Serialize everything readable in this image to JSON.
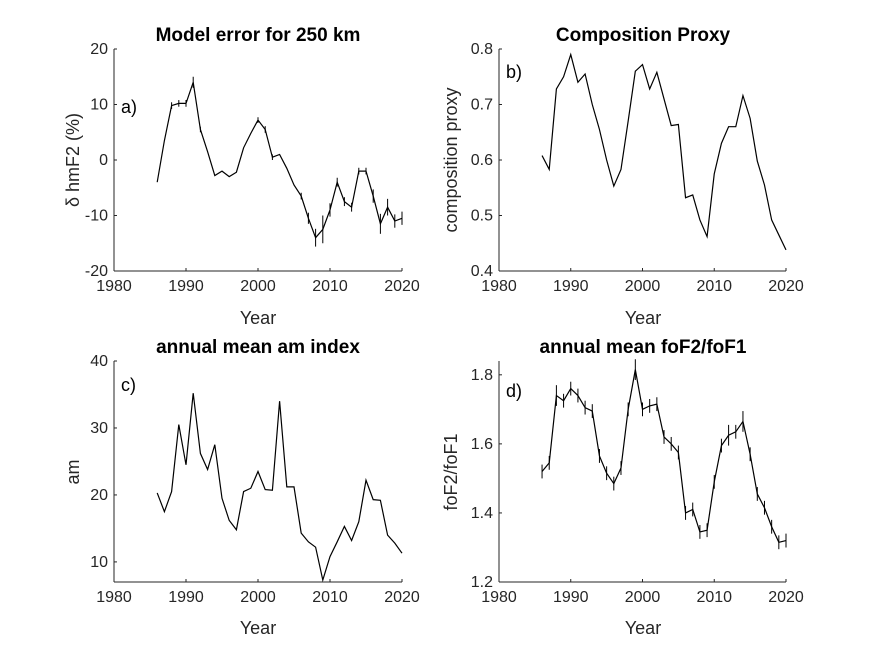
{
  "chart_data": [
    {
      "id": "a",
      "type": "line",
      "title": "Model error for 250 km",
      "panel_label": "a)",
      "xlabel": "Year",
      "ylabel": "δ hmF2 (%)",
      "xlim": [
        1980,
        2020
      ],
      "ylim": [
        -20,
        20
      ],
      "xticks": [
        1980,
        1990,
        2000,
        2010,
        2020
      ],
      "yticks": [
        -20,
        -10,
        0,
        10,
        20
      ],
      "x": [
        1986,
        1987,
        1988,
        1989,
        1990,
        1991,
        1992,
        1993,
        1994,
        1995,
        1996,
        1997,
        1998,
        1999,
        2000,
        2001,
        2002,
        2003,
        2004,
        2005,
        2006,
        2007,
        2008,
        2009,
        2010,
        2011,
        2012,
        2013,
        2014,
        2015,
        2016,
        2017,
        2018,
        2019,
        2020
      ],
      "y": [
        -4,
        3.5,
        9.8,
        10.2,
        10.2,
        14,
        5.5,
        1.5,
        -2.8,
        -2,
        -3,
        -2.2,
        2.2,
        4.8,
        7.2,
        5.5,
        0.5,
        1,
        -1.5,
        -4.5,
        -6.5,
        -10.5,
        -14,
        -12.5,
        -9,
        -4,
        -7.5,
        -8.5,
        -2,
        -2,
        -6.5,
        -11.5,
        -8.5,
        -11,
        -10.5
      ],
      "err": [
        0,
        0,
        0.6,
        0.6,
        0.6,
        1,
        0.5,
        0,
        0,
        0,
        0,
        0,
        0,
        0,
        0.5,
        0.6,
        0.5,
        0,
        0,
        0,
        0.6,
        1,
        1.6,
        2.5,
        1.2,
        0.8,
        0.8,
        0.8,
        0.6,
        0.6,
        1.2,
        1.8,
        1.5,
        1.2,
        1.2
      ]
    },
    {
      "id": "b",
      "type": "line",
      "title": "Composition Proxy",
      "panel_label": "b)",
      "xlabel": "Year",
      "ylabel": "composition proxy",
      "xlim": [
        1980,
        2020
      ],
      "ylim": [
        0.4,
        0.8
      ],
      "xticks": [
        1980,
        1990,
        2000,
        2010,
        2020
      ],
      "yticks": [
        0.4,
        0.5,
        0.6,
        0.7,
        0.8
      ],
      "x": [
        1986,
        1987,
        1988,
        1989,
        1990,
        1991,
        1992,
        1993,
        1994,
        1995,
        1996,
        1997,
        1998,
        1999,
        2000,
        2001,
        2002,
        2003,
        2004,
        2005,
        2006,
        2007,
        2008,
        2009,
        2010,
        2011,
        2012,
        2013,
        2014,
        2015,
        2016,
        2017,
        2018,
        2019,
        2020
      ],
      "y": [
        0.608,
        0.583,
        0.728,
        0.75,
        0.79,
        0.74,
        0.755,
        0.7,
        0.655,
        0.6,
        0.553,
        0.583,
        0.67,
        0.76,
        0.772,
        0.728,
        0.758,
        0.71,
        0.662,
        0.664,
        0.532,
        0.537,
        0.492,
        0.462,
        0.575,
        0.63,
        0.66,
        0.66,
        0.716,
        0.675,
        0.598,
        0.555,
        0.492,
        0.465,
        0.438
      ],
      "err": []
    },
    {
      "id": "c",
      "type": "line",
      "title": "annual mean am index",
      "panel_label": "c)",
      "xlabel": "Year",
      "ylabel": "am",
      "xlim": [
        1980,
        2020
      ],
      "ylim": [
        7,
        40
      ],
      "xticks": [
        1980,
        1990,
        2000,
        2010,
        2020
      ],
      "yticks": [
        10,
        20,
        30,
        40
      ],
      "x": [
        1986,
        1987,
        1988,
        1989,
        1990,
        1991,
        1992,
        1993,
        1994,
        1995,
        1996,
        1997,
        1998,
        1999,
        2000,
        2001,
        2002,
        2003,
        2004,
        2005,
        2006,
        2007,
        2008,
        2009,
        2010,
        2011,
        2012,
        2013,
        2014,
        2015,
        2016,
        2017,
        2018,
        2019,
        2020
      ],
      "y": [
        20.3,
        17.5,
        20.5,
        30.5,
        24.5,
        35.2,
        26.2,
        23.8,
        27.5,
        19.5,
        16.2,
        14.8,
        20.5,
        21,
        23.5,
        20.8,
        20.7,
        34,
        21.2,
        21.2,
        14.3,
        13,
        12.2,
        7.3,
        10.8,
        13,
        15.3,
        13.2,
        16,
        22.2,
        19.3,
        19.2,
        14,
        12.8,
        11.3
      ],
      "err": []
    },
    {
      "id": "d",
      "type": "line",
      "title": "annual mean foF2/foF1",
      "panel_label": "d)",
      "xlabel": "Year",
      "ylabel": "foF2/foF1",
      "xlim": [
        1980,
        2020
      ],
      "ylim": [
        1.2,
        1.84
      ],
      "xticks": [
        1980,
        1990,
        2000,
        2010,
        2020
      ],
      "yticks": [
        1.2,
        1.4,
        1.6,
        1.8
      ],
      "x": [
        1986,
        1987,
        1988,
        1989,
        1990,
        1991,
        1992,
        1993,
        1994,
        1995,
        1996,
        1997,
        1998,
        1999,
        2000,
        2001,
        2002,
        2003,
        2004,
        2005,
        2006,
        2007,
        2008,
        2009,
        2010,
        2011,
        2012,
        2013,
        2014,
        2015,
        2016,
        2017,
        2018,
        2019,
        2020
      ],
      "y": [
        1.52,
        1.545,
        1.74,
        1.725,
        1.76,
        1.74,
        1.705,
        1.695,
        1.565,
        1.515,
        1.485,
        1.53,
        1.7,
        1.815,
        1.7,
        1.71,
        1.715,
        1.62,
        1.6,
        1.575,
        1.4,
        1.41,
        1.345,
        1.35,
        1.49,
        1.595,
        1.625,
        1.635,
        1.665,
        1.57,
        1.455,
        1.415,
        1.36,
        1.315,
        1.32
      ],
      "err": [
        0.02,
        0.02,
        0.03,
        0.02,
        0.02,
        0.02,
        0.02,
        0.02,
        0.02,
        0.02,
        0.02,
        0.02,
        0.02,
        0.03,
        0.02,
        0.02,
        0.02,
        0.02,
        0.02,
        0.02,
        0.02,
        0.02,
        0.02,
        0.02,
        0.02,
        0.02,
        0.03,
        0.02,
        0.03,
        0.02,
        0.02,
        0.02,
        0.02,
        0.02,
        0.02
      ]
    }
  ]
}
